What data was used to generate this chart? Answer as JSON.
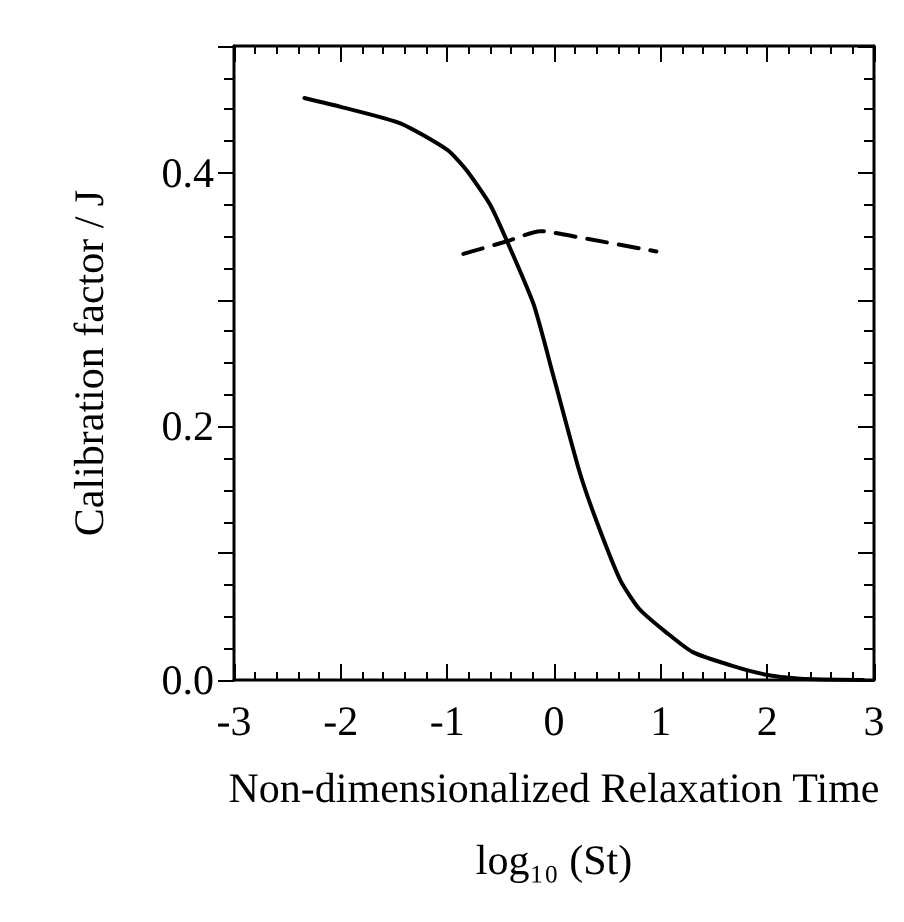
{
  "chart_data": {
    "type": "line",
    "xlabel": "Non-dimensionalized Relaxation Time\nlog₁₀ (St)",
    "ylabel": "Calibration factor / J",
    "xlim": [
      -3,
      3
    ],
    "xticks": [
      -3,
      -2,
      -1,
      0,
      1,
      2,
      3
    ],
    "ylim": [
      0,
      0.5
    ],
    "yticks": [
      {
        "value": 0,
        "label": "0.0"
      },
      {
        "value": 0.1,
        "label": null
      },
      {
        "value": 0.2,
        "label": "0.2"
      },
      {
        "value": 0.3,
        "label": null
      },
      {
        "value": 0.4,
        "label": "0.4"
      },
      {
        "value": 0.5,
        "label": null
      }
    ],
    "grid": false,
    "marker": "none",
    "series": [
      {
        "color": "#000000",
        "line_style": "solid",
        "x": [
          -2.34,
          -2.0,
          -1.44,
          -1.0,
          -0.82,
          -0.6,
          -0.44,
          -0.19,
          0.0,
          0.24,
          0.4,
          0.62,
          0.8,
          1.06,
          1.3,
          1.68,
          2.0,
          2.31,
          2.9
        ],
        "values": [
          0.459,
          0.452,
          0.439,
          0.418,
          0.402,
          0.375,
          0.346,
          0.296,
          0.238,
          0.164,
          0.125,
          0.079,
          0.056,
          0.037,
          0.022,
          0.011,
          0.004,
          0.001,
          0.0
        ]
      },
      {
        "color": "#000000",
        "line_style": "dashed",
        "x": [
          -0.85,
          -0.44,
          -0.13,
          0.24,
          0.96
        ],
        "values": [
          0.336,
          0.346,
          0.354,
          0.349,
          0.338
        ]
      }
    ]
  }
}
